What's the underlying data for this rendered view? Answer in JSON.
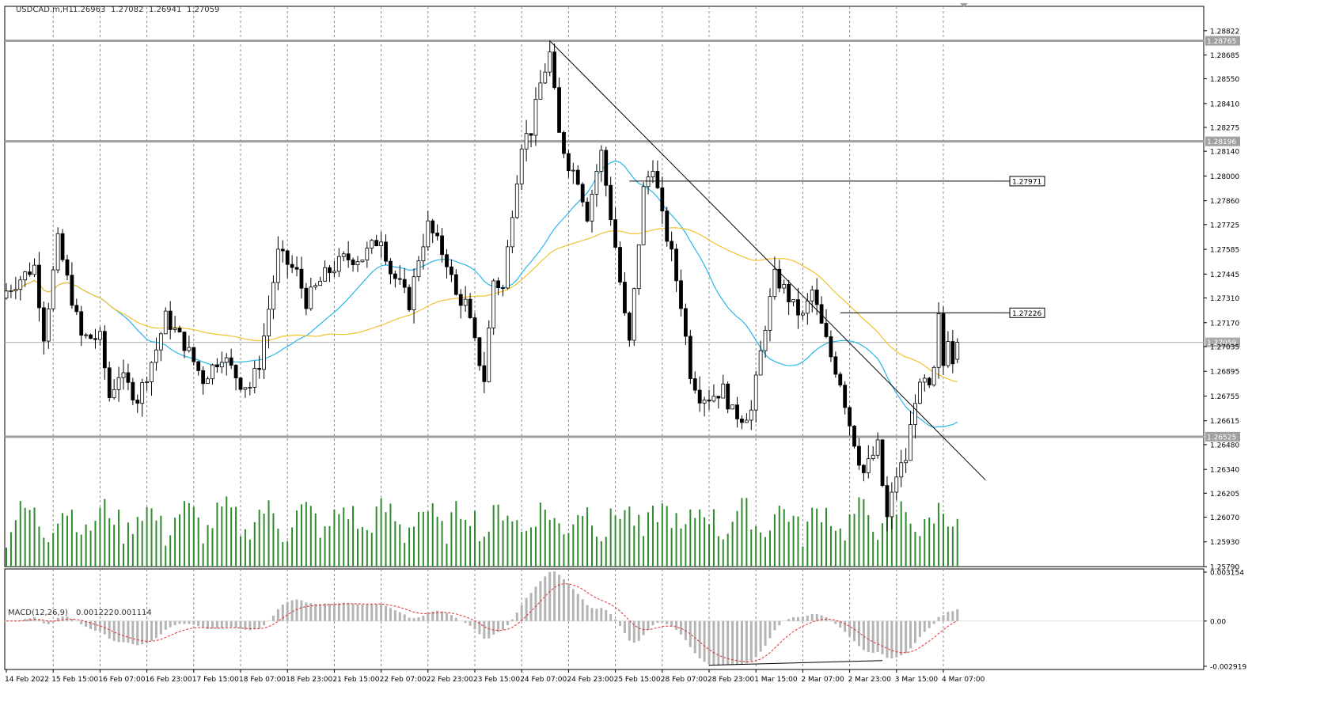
{
  "chart_data": {
    "type": "candlestick",
    "symbol_header": {
      "symbol": "USDCAD.m,H1",
      "values": [
        "1.26963",
        "1.27082",
        "1.26941",
        "1.27059"
      ]
    },
    "price_axis": {
      "ylim": [
        1.2579,
        1.2896
      ],
      "ticks": [
        "1.28822",
        "1.28685",
        "1.28550",
        "1.28410",
        "1.28275",
        "1.28140",
        "1.28000",
        "1.27860",
        "1.27725",
        "1.27585",
        "1.27445",
        "1.27310",
        "1.27170",
        "1.27035",
        "1.26895",
        "1.26755",
        "1.26615",
        "1.26480",
        "1.26340",
        "1.26205",
        "1.26070",
        "1.25930",
        "1.25790"
      ]
    },
    "time_axis": {
      "labels": [
        "14 Feb 2022",
        "15 Feb 15:00",
        "16 Feb 07:00",
        "16 Feb 23:00",
        "17 Feb 15:00",
        "18 Feb 07:00",
        "18 Feb 23:00",
        "21 Feb 15:00",
        "22 Feb 07:00",
        "22 Feb 23:00",
        "23 Feb 15:00",
        "24 Feb 07:00",
        "24 Feb 23:00",
        "25 Feb 15:00",
        "28 Feb 07:00",
        "28 Feb 23:00",
        "1 Mar 15:00",
        "2 Mar 07:00",
        "2 Mar 23:00",
        "3 Mar 15:00",
        "4 Mar 07:00"
      ]
    },
    "horizontal_levels": [
      {
        "value": 1.28765,
        "label": "1.28765",
        "color": "#a0a0a0",
        "style": "thick"
      },
      {
        "value": 1.28196,
        "label": "1.28196",
        "color": "#a0a0a0",
        "style": "thick"
      },
      {
        "value": 1.26525,
        "label": "1.26525",
        "color": "#a0a0a0",
        "style": "thick"
      },
      {
        "value": 1.27059,
        "label": "1.27059",
        "color": "#b0b0b0",
        "style": "current-price"
      }
    ],
    "price_labels": [
      {
        "value": 1.27971,
        "label": "1.27971"
      },
      {
        "value": 1.27226,
        "label": "1.27226"
      }
    ],
    "trendline": {
      "from": {
        "bar": 116,
        "price": 1.28765
      },
      "to": {
        "bar": 209,
        "price": 1.2628
      }
    },
    "divergence_line": {
      "from": {
        "bar": 150,
        "macd": -0.00285
      },
      "to": {
        "bar": 187,
        "macd": -0.00255
      }
    },
    "moving_averages": [
      {
        "color": "#29b6e8"
      },
      {
        "color": "#f2c230"
      }
    ],
    "ohlc_anchors": [
      [
        0,
        1.2735
      ],
      [
        6,
        1.2749
      ],
      [
        8,
        1.271
      ],
      [
        11,
        1.2763
      ],
      [
        16,
        1.2709
      ],
      [
        20,
        1.2708
      ],
      [
        22,
        1.2675
      ],
      [
        24,
        1.2688
      ],
      [
        28,
        1.2674
      ],
      [
        32,
        1.2702
      ],
      [
        34,
        1.272
      ],
      [
        38,
        1.2705
      ],
      [
        42,
        1.2685
      ],
      [
        46,
        1.2699
      ],
      [
        50,
        1.2683
      ],
      [
        52,
        1.2681
      ],
      [
        54,
        1.2694
      ],
      [
        58,
        1.2756
      ],
      [
        62,
        1.2745
      ],
      [
        64,
        1.2729
      ],
      [
        68,
        1.2744
      ],
      [
        72,
        1.2753
      ],
      [
        76,
        1.2754
      ],
      [
        80,
        1.2766
      ],
      [
        82,
        1.2746
      ],
      [
        84,
        1.2738
      ],
      [
        86,
        1.2728
      ],
      [
        88,
        1.2754
      ],
      [
        90,
        1.2772
      ],
      [
        94,
        1.2752
      ],
      [
        96,
        1.2732
      ],
      [
        98,
        1.2728
      ],
      [
        100,
        1.2705
      ],
      [
        102,
        1.2685
      ],
      [
        104,
        1.2741
      ],
      [
        106,
        1.2736
      ],
      [
        108,
        1.2781
      ],
      [
        110,
        1.2819
      ],
      [
        112,
        1.2826
      ],
      [
        114,
        1.2852
      ],
      [
        116,
        1.2869
      ],
      [
        118,
        1.2823
      ],
      [
        120,
        1.2807
      ],
      [
        122,
        1.2799
      ],
      [
        124,
        1.2778
      ],
      [
        126,
        1.2803
      ],
      [
        127,
        1.2813
      ],
      [
        128,
        1.2795
      ],
      [
        130,
        1.276
      ],
      [
        132,
        1.272
      ],
      [
        133,
        1.2705
      ],
      [
        136,
        1.2792
      ],
      [
        138,
        1.2807
      ],
      [
        140,
        1.2776
      ],
      [
        142,
        1.2755
      ],
      [
        144,
        1.2728
      ],
      [
        146,
        1.2689
      ],
      [
        148,
        1.2676
      ],
      [
        150,
        1.2675
      ],
      [
        153,
        1.2679
      ],
      [
        155,
        1.2666
      ],
      [
        157,
        1.2664
      ],
      [
        159,
        1.2667
      ],
      [
        162,
        1.2716
      ],
      [
        164,
        1.2743
      ],
      [
        166,
        1.2736
      ],
      [
        168,
        1.2726
      ],
      [
        170,
        1.272
      ],
      [
        172,
        1.2735
      ],
      [
        174,
        1.2715
      ],
      [
        176,
        1.2698
      ],
      [
        178,
        1.2684
      ],
      [
        180,
        1.266
      ],
      [
        182,
        1.264
      ],
      [
        183,
        1.2632
      ],
      [
        186,
        1.2647
      ],
      [
        187,
        1.2625
      ],
      [
        188,
        1.2606
      ],
      [
        190,
        1.2631
      ],
      [
        192,
        1.264
      ],
      [
        194,
        1.2675
      ],
      [
        196,
        1.2683
      ],
      [
        197,
        1.2678
      ],
      [
        198,
        1.2689
      ],
      [
        199,
        1.2719
      ],
      [
        200,
        1.2693
      ],
      [
        201,
        1.271
      ],
      [
        202,
        1.2697
      ],
      [
        203,
        1.2705
      ]
    ],
    "bars_count": 204,
    "volume": {
      "color": "#2e8b2e"
    },
    "macd": {
      "label": "MACD(12,26,9)",
      "values": [
        "0.001222",
        "0.001114"
      ],
      "ticks": [
        "0.003154",
        "0.00",
        "-0.002919"
      ],
      "ylim": [
        -0.002919,
        0.003154
      ],
      "histogram_color": "#b4b4b4",
      "signal_color": "#e03030"
    }
  }
}
